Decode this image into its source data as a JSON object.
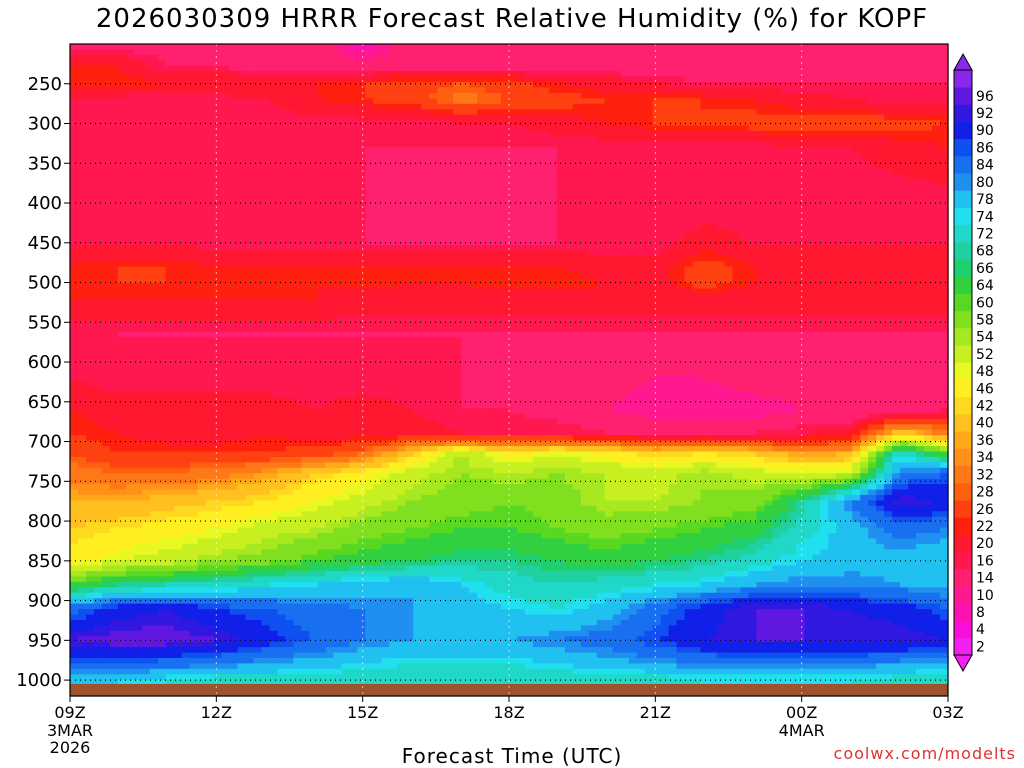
{
  "chart_data": {
    "type": "heatmap",
    "title": "2026030309 HRRR Forecast Relative Humidity (%) for KOPF",
    "xlabel": "Forecast Time (UTC)",
    "ylabel": "",
    "credit": "coolwx.com/modelts",
    "x_ticks": [
      {
        "hour": 0,
        "label": "09Z",
        "sub1": "3MAR",
        "sub2": "2026"
      },
      {
        "hour": 3,
        "label": "12Z",
        "sub1": "",
        "sub2": ""
      },
      {
        "hour": 6,
        "label": "15Z",
        "sub1": "",
        "sub2": ""
      },
      {
        "hour": 9,
        "label": "18Z",
        "sub1": "",
        "sub2": ""
      },
      {
        "hour": 12,
        "label": "21Z",
        "sub1": "",
        "sub2": ""
      },
      {
        "hour": 15,
        "label": "00Z",
        "sub1": "4MAR",
        "sub2": ""
      },
      {
        "hour": 18,
        "label": "03Z",
        "sub1": "",
        "sub2": ""
      }
    ],
    "y_ticks": [
      250,
      300,
      350,
      400,
      450,
      500,
      550,
      600,
      650,
      700,
      750,
      800,
      850,
      900,
      950,
      1000
    ],
    "ylim": [
      200,
      1020
    ],
    "xlim": [
      0,
      18
    ],
    "colorbar": {
      "levels": [
        2,
        4,
        8,
        10,
        14,
        16,
        20,
        22,
        26,
        28,
        32,
        34,
        36,
        40,
        42,
        46,
        48,
        52,
        54,
        58,
        60,
        64,
        66,
        68,
        72,
        74,
        78,
        80,
        84,
        86,
        90,
        92,
        96
      ],
      "colors": [
        "#f020f0",
        "#f810d8",
        "#ff10b0",
        "#ff1890",
        "#ff2070",
        "#ff1850",
        "#ff1830",
        "#ff2010",
        "#ff4010",
        "#ff6010",
        "#ff7818",
        "#ff9018",
        "#ffa818",
        "#ffc020",
        "#ffd820",
        "#ffee20",
        "#e8f820",
        "#c8f020",
        "#a8e820",
        "#80e020",
        "#58d820",
        "#30d040",
        "#20d070",
        "#20d0a0",
        "#20d8c8",
        "#20e0f0",
        "#20c0f0",
        "#2090f0",
        "#1870f0",
        "#1050f0",
        "#1020e8",
        "#3018e0",
        "#6018e0",
        "#8828e8"
      ]
    },
    "rh_profile": [
      {
        "p": 200,
        "rh": [
          12,
          12,
          12,
          12,
          12,
          12,
          6,
          12,
          12,
          12,
          12,
          12,
          10,
          12,
          12,
          12,
          10,
          12,
          12
        ]
      },
      {
        "p": 230,
        "rh": [
          20,
          20,
          14,
          14,
          13,
          12,
          12,
          12,
          12,
          12,
          12,
          12,
          12,
          12,
          12,
          12,
          12,
          12,
          12
        ]
      },
      {
        "p": 250,
        "rh": [
          22,
          22,
          20,
          20,
          20,
          20,
          22,
          24,
          26,
          24,
          20,
          18,
          16,
          14,
          14,
          14,
          14,
          14,
          14
        ]
      },
      {
        "p": 270,
        "rh": [
          14,
          14,
          14,
          14,
          16,
          20,
          22,
          24,
          30,
          26,
          24,
          22,
          22,
          22,
          20,
          18,
          16,
          14,
          14
        ]
      },
      {
        "p": 300,
        "rh": [
          14,
          14,
          14,
          14,
          14,
          14,
          14,
          14,
          16,
          16,
          18,
          20,
          22,
          22,
          24,
          24,
          26,
          24,
          22
        ]
      },
      {
        "p": 330,
        "rh": [
          14,
          14,
          14,
          14,
          14,
          14,
          14,
          14,
          14,
          14,
          14,
          14,
          14,
          14,
          14,
          16,
          16,
          18,
          20
        ]
      },
      {
        "p": 400,
        "rh": [
          14,
          14,
          14,
          14,
          14,
          14,
          14,
          12,
          12,
          12,
          14,
          14,
          14,
          14,
          14,
          14,
          14,
          14,
          14
        ]
      },
      {
        "p": 450,
        "rh": [
          16,
          16,
          16,
          14,
          14,
          14,
          14,
          14,
          14,
          14,
          14,
          14,
          14,
          18,
          16,
          16,
          16,
          16,
          16
        ]
      },
      {
        "p": 480,
        "rh": [
          20,
          22,
          22,
          20,
          20,
          20,
          20,
          20,
          20,
          20,
          20,
          18,
          18,
          24,
          20,
          18,
          18,
          18,
          18
        ]
      },
      {
        "p": 500,
        "rh": [
          22,
          22,
          22,
          22,
          20,
          20,
          22,
          20,
          20,
          22,
          22,
          20,
          18,
          24,
          20,
          18,
          18,
          18,
          18
        ]
      },
      {
        "p": 520,
        "rh": [
          20,
          20,
          20,
          20,
          20,
          20,
          18,
          18,
          18,
          18,
          18,
          18,
          18,
          18,
          18,
          18,
          18,
          18,
          18
        ]
      },
      {
        "p": 560,
        "rh": [
          14,
          14,
          14,
          14,
          14,
          14,
          14,
          14,
          14,
          14,
          14,
          14,
          14,
          14,
          14,
          14,
          14,
          14,
          14
        ]
      },
      {
        "p": 620,
        "rh": [
          16,
          14,
          14,
          14,
          14,
          14,
          14,
          14,
          14,
          12,
          12,
          12,
          10,
          10,
          12,
          12,
          12,
          10,
          12
        ]
      },
      {
        "p": 660,
        "rh": [
          20,
          18,
          18,
          18,
          18,
          16,
          18,
          16,
          14,
          14,
          12,
          10,
          8,
          8,
          8,
          10,
          10,
          10,
          14
        ]
      },
      {
        "p": 690,
        "rh": [
          22,
          20,
          18,
          18,
          20,
          18,
          18,
          18,
          16,
          16,
          16,
          14,
          14,
          14,
          14,
          16,
          18,
          40,
          30
        ]
      },
      {
        "p": 715,
        "rh": [
          26,
          22,
          22,
          22,
          22,
          24,
          28,
          40,
          52,
          44,
          48,
          44,
          40,
          42,
          40,
          34,
          36,
          72,
          58
        ]
      },
      {
        "p": 740,
        "rh": [
          30,
          28,
          28,
          30,
          34,
          40,
          44,
          50,
          54,
          52,
          54,
          52,
          50,
          54,
          50,
          48,
          50,
          80,
          84
        ]
      },
      {
        "p": 775,
        "rh": [
          36,
          36,
          38,
          40,
          42,
          46,
          50,
          54,
          56,
          58,
          56,
          52,
          52,
          54,
          56,
          66,
          80,
          92,
          90
        ]
      },
      {
        "p": 810,
        "rh": [
          40,
          42,
          44,
          46,
          50,
          52,
          56,
          58,
          60,
          60,
          58,
          56,
          58,
          60,
          62,
          70,
          76,
          82,
          80
        ]
      },
      {
        "p": 850,
        "rh": [
          44,
          48,
          50,
          54,
          56,
          60,
          62,
          64,
          66,
          66,
          64,
          62,
          64,
          66,
          70,
          74,
          76,
          76,
          74
        ]
      },
      {
        "p": 880,
        "rh": [
          60,
          66,
          68,
          70,
          72,
          74,
          76,
          78,
          74,
          70,
          68,
          70,
          72,
          74,
          78,
          80,
          80,
          78,
          76
        ]
      },
      {
        "p": 910,
        "rh": [
          82,
          88,
          90,
          86,
          84,
          82,
          80,
          78,
          76,
          74,
          72,
          76,
          82,
          88,
          92,
          92,
          90,
          88,
          84
        ]
      },
      {
        "p": 950,
        "rh": [
          92,
          94,
          94,
          92,
          88,
          84,
          80,
          78,
          78,
          78,
          80,
          82,
          86,
          90,
          92,
          92,
          92,
          92,
          90
        ]
      },
      {
        "p": 980,
        "rh": [
          84,
          84,
          82,
          80,
          78,
          76,
          74,
          72,
          72,
          72,
          74,
          76,
          78,
          80,
          80,
          80,
          80,
          78,
          76
        ]
      },
      {
        "p": 1000,
        "rh": [
          74,
          74,
          72,
          70,
          70,
          70,
          68,
          68,
          68,
          68,
          68,
          70,
          70,
          72,
          72,
          72,
          72,
          70,
          70
        ]
      }
    ],
    "ground_color": "#a0522d",
    "grid": true,
    "legend": "right"
  }
}
